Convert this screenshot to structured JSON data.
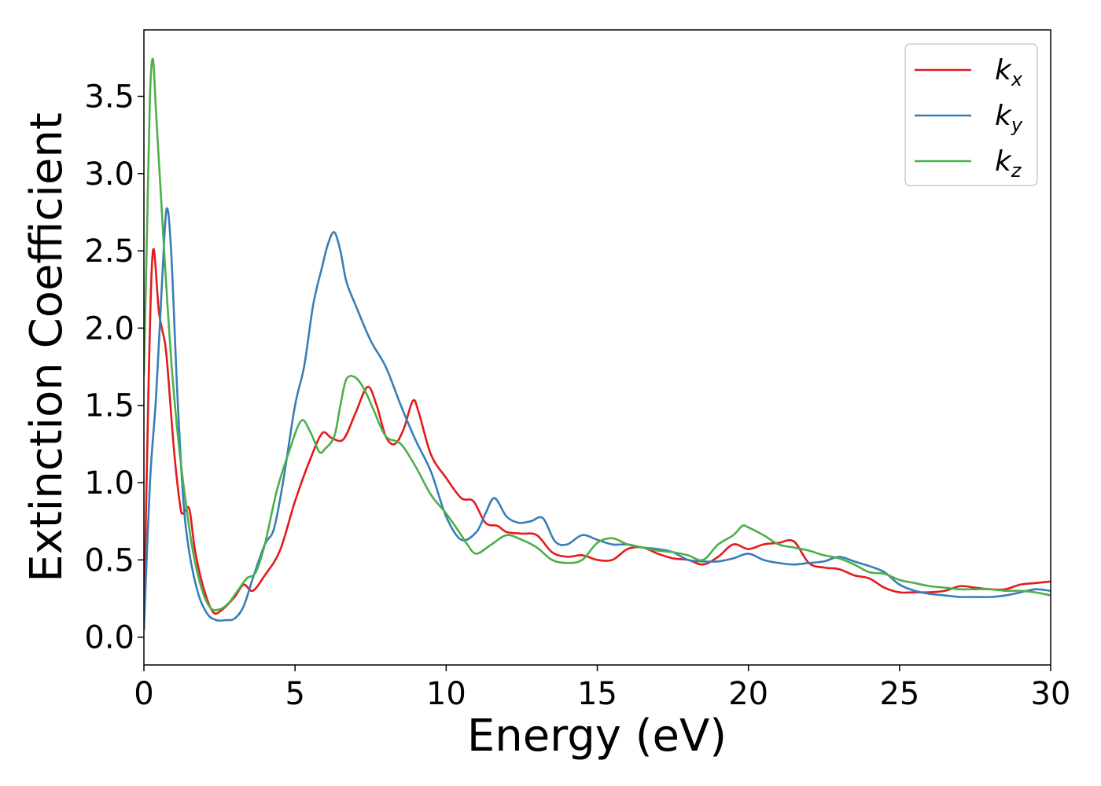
{
  "chart_data": {
    "type": "line",
    "xlabel": "Energy (eV)",
    "ylabel": "Extinction Coefficient",
    "xlim": [
      0,
      30
    ],
    "ylim": [
      -0.18,
      3.93
    ],
    "xticks": [
      "0",
      "5",
      "10",
      "15",
      "20",
      "25",
      "30"
    ],
    "yticks": [
      "0.0",
      "0.5",
      "1.0",
      "1.5",
      "2.0",
      "2.5",
      "3.0",
      "3.5"
    ],
    "grid": false,
    "legend_position": "top-right",
    "series": [
      {
        "name": "k",
        "sub": "x",
        "color": "#e41a1c",
        "x": [
          0,
          0.15,
          0.3,
          0.5,
          0.7,
          0.8,
          1.0,
          1.2,
          1.3,
          1.5,
          1.7,
          2.0,
          2.3,
          2.6,
          3.0,
          3.3,
          3.6,
          4.0,
          4.5,
          5.0,
          5.5,
          5.9,
          6.2,
          6.6,
          7.0,
          7.4,
          7.7,
          8.0,
          8.3,
          8.6,
          8.9,
          9.1,
          9.5,
          10.0,
          10.5,
          10.9,
          11.3,
          11.7,
          12.0,
          12.5,
          13.0,
          13.5,
          14.0,
          14.5,
          15.0,
          15.5,
          16.0,
          16.5,
          17.0,
          17.5,
          18.0,
          18.5,
          19.0,
          19.5,
          20.0,
          20.5,
          21.0,
          21.5,
          22.0,
          22.5,
          23.0,
          23.5,
          24.0,
          24.5,
          25.0,
          25.5,
          26.0,
          26.5,
          27.0,
          27.5,
          28.0,
          28.5,
          29.0,
          29.5,
          30.0
        ],
        "y": [
          0.05,
          1.6,
          2.5,
          2.1,
          1.9,
          1.7,
          1.2,
          0.85,
          0.8,
          0.83,
          0.55,
          0.3,
          0.16,
          0.18,
          0.26,
          0.34,
          0.3,
          0.4,
          0.56,
          0.88,
          1.15,
          1.32,
          1.29,
          1.28,
          1.45,
          1.62,
          1.5,
          1.3,
          1.25,
          1.35,
          1.53,
          1.45,
          1.18,
          1.03,
          0.9,
          0.88,
          0.74,
          0.72,
          0.68,
          0.67,
          0.66,
          0.55,
          0.52,
          0.53,
          0.5,
          0.5,
          0.57,
          0.58,
          0.54,
          0.51,
          0.5,
          0.47,
          0.52,
          0.6,
          0.57,
          0.6,
          0.61,
          0.62,
          0.48,
          0.45,
          0.44,
          0.4,
          0.38,
          0.32,
          0.29,
          0.29,
          0.29,
          0.3,
          0.33,
          0.32,
          0.31,
          0.31,
          0.34,
          0.35,
          0.36
        ]
      },
      {
        "name": "k",
        "sub": "y",
        "color": "#377eb8",
        "x": [
          0,
          0.2,
          0.4,
          0.6,
          0.75,
          0.9,
          1.1,
          1.3,
          1.5,
          1.8,
          2.1,
          2.4,
          2.7,
          3.0,
          3.3,
          3.6,
          4.0,
          4.3,
          4.6,
          5.0,
          5.3,
          5.6,
          5.9,
          6.1,
          6.3,
          6.5,
          6.7,
          7.0,
          7.5,
          8.0,
          8.5,
          9.0,
          9.5,
          10.0,
          10.5,
          11.0,
          11.3,
          11.6,
          12.0,
          12.4,
          12.8,
          13.2,
          13.6,
          14.0,
          14.5,
          15.0,
          15.5,
          16.0,
          16.5,
          17.0,
          17.5,
          18.0,
          18.5,
          19.0,
          19.5,
          20.0,
          20.5,
          21.0,
          21.5,
          22.0,
          22.5,
          23.0,
          23.5,
          24.0,
          24.5,
          25.0,
          25.5,
          26.0,
          26.5,
          27.0,
          27.5,
          28.0,
          28.5,
          29.0,
          29.5,
          30.0
        ],
        "y": [
          0.05,
          1.0,
          1.55,
          2.3,
          2.77,
          2.5,
          1.6,
          0.9,
          0.55,
          0.28,
          0.15,
          0.11,
          0.11,
          0.12,
          0.2,
          0.38,
          0.6,
          0.7,
          1.0,
          1.5,
          1.75,
          2.15,
          2.4,
          2.55,
          2.62,
          2.5,
          2.3,
          2.15,
          1.92,
          1.75,
          1.5,
          1.27,
          1.07,
          0.78,
          0.63,
          0.68,
          0.8,
          0.9,
          0.78,
          0.74,
          0.75,
          0.77,
          0.62,
          0.6,
          0.66,
          0.63,
          0.6,
          0.6,
          0.58,
          0.57,
          0.55,
          0.5,
          0.49,
          0.49,
          0.51,
          0.54,
          0.5,
          0.48,
          0.47,
          0.48,
          0.49,
          0.52,
          0.49,
          0.46,
          0.42,
          0.34,
          0.3,
          0.28,
          0.27,
          0.26,
          0.26,
          0.26,
          0.27,
          0.29,
          0.31,
          0.3
        ]
      },
      {
        "name": "k",
        "sub": "z",
        "color": "#4daf4a",
        "x": [
          0,
          0.1,
          0.2,
          0.3,
          0.4,
          0.55,
          0.7,
          0.9,
          1.1,
          1.3,
          1.6,
          1.9,
          2.2,
          2.5,
          2.8,
          3.1,
          3.4,
          3.7,
          4.0,
          4.4,
          4.8,
          5.2,
          5.5,
          5.8,
          6.0,
          6.3,
          6.5,
          6.7,
          7.0,
          7.3,
          7.6,
          8.0,
          8.5,
          9.0,
          9.5,
          10.0,
          10.5,
          10.7,
          11.0,
          11.5,
          12.0,
          12.5,
          13.0,
          13.5,
          14.0,
          14.5,
          15.0,
          15.5,
          16.0,
          16.5,
          17.0,
          17.5,
          18.0,
          18.5,
          19.0,
          19.5,
          19.8,
          20.0,
          20.5,
          21.0,
          21.5,
          22.0,
          22.5,
          23.0,
          23.5,
          24.0,
          24.5,
          25.0,
          25.5,
          26.0,
          26.5,
          27.0,
          27.5,
          28.0,
          28.5,
          29.0,
          29.5,
          30.0
        ],
        "y": [
          1.7,
          2.6,
          3.5,
          3.74,
          3.4,
          2.9,
          2.4,
          1.8,
          1.35,
          1.0,
          0.58,
          0.32,
          0.19,
          0.18,
          0.22,
          0.3,
          0.38,
          0.42,
          0.6,
          0.95,
          1.2,
          1.4,
          1.33,
          1.2,
          1.22,
          1.3,
          1.5,
          1.67,
          1.68,
          1.6,
          1.47,
          1.3,
          1.25,
          1.1,
          0.92,
          0.8,
          0.66,
          0.6,
          0.54,
          0.6,
          0.66,
          0.63,
          0.58,
          0.5,
          0.48,
          0.5,
          0.61,
          0.64,
          0.6,
          0.58,
          0.56,
          0.55,
          0.53,
          0.5,
          0.6,
          0.66,
          0.72,
          0.71,
          0.66,
          0.6,
          0.58,
          0.56,
          0.53,
          0.51,
          0.47,
          0.42,
          0.41,
          0.37,
          0.35,
          0.33,
          0.32,
          0.31,
          0.31,
          0.31,
          0.3,
          0.3,
          0.29,
          0.27
        ]
      }
    ]
  }
}
